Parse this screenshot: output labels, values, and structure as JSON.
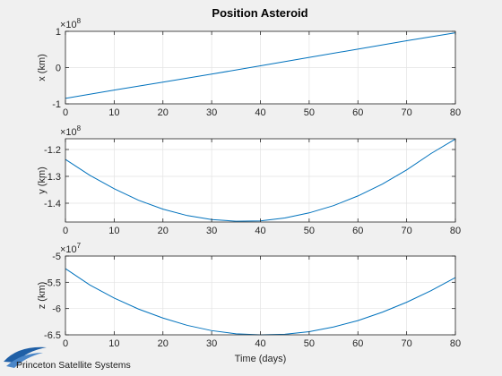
{
  "chart_data": [
    {
      "type": "line",
      "title": "Position Asteroid",
      "ylabel": "x (km)",
      "xlabel": "",
      "exponent_base": "10",
      "exponent_power": "8",
      "multiplier": 100000000,
      "xlim": [
        0,
        80
      ],
      "ylim": [
        -1,
        1
      ],
      "xticks": [
        0,
        10,
        20,
        30,
        40,
        50,
        60,
        70,
        80
      ],
      "yticks": [
        -1,
        0,
        1
      ],
      "grid": true,
      "color": "#0072bd",
      "x": [
        0,
        10,
        20,
        30,
        40,
        50,
        60,
        70,
        80
      ],
      "y": [
        -0.85,
        -0.62,
        -0.4,
        -0.18,
        0.05,
        0.28,
        0.51,
        0.74,
        0.96
      ]
    },
    {
      "type": "line",
      "title": "",
      "ylabel": "y (km)",
      "xlabel": "",
      "exponent_base": "10",
      "exponent_power": "8",
      "multiplier": 100000000,
      "xlim": [
        0,
        80
      ],
      "ylim": [
        -1.47,
        -1.16
      ],
      "xticks": [
        0,
        10,
        20,
        30,
        40,
        50,
        60,
        70,
        80
      ],
      "yticks": [
        -1.4,
        -1.3,
        -1.2
      ],
      "grid": true,
      "color": "#0072bd",
      "x": [
        0,
        5,
        10,
        15,
        20,
        25,
        30,
        35,
        40,
        45,
        50,
        55,
        60,
        65,
        70,
        75,
        80
      ],
      "y": [
        -1.237,
        -1.296,
        -1.346,
        -1.389,
        -1.422,
        -1.446,
        -1.461,
        -1.467,
        -1.466,
        -1.455,
        -1.436,
        -1.409,
        -1.373,
        -1.329,
        -1.276,
        -1.215,
        -1.161
      ]
    },
    {
      "type": "line",
      "title": "",
      "ylabel": "z (km)",
      "xlabel": "Time (days)",
      "exponent_base": "10",
      "exponent_power": "7",
      "multiplier": 10000000,
      "xlim": [
        0,
        80
      ],
      "ylim": [
        -6.5,
        -5
      ],
      "xticks": [
        0,
        10,
        20,
        30,
        40,
        50,
        60,
        70,
        80
      ],
      "yticks": [
        -6.5,
        -6,
        -5.5,
        -5
      ],
      "grid": true,
      "color": "#0072bd",
      "x": [
        0,
        5,
        10,
        15,
        20,
        25,
        30,
        35,
        40,
        45,
        50,
        55,
        60,
        65,
        70,
        75,
        80
      ],
      "y": [
        -5.24,
        -5.55,
        -5.8,
        -6.01,
        -6.18,
        -6.32,
        -6.42,
        -6.48,
        -6.5,
        -6.49,
        -6.44,
        -6.35,
        -6.23,
        -6.07,
        -5.88,
        -5.66,
        -5.41
      ]
    }
  ],
  "branding": {
    "logo_text": "Princeton Satellite Systems",
    "logo_name": "princeton-satellite-systems-logo"
  }
}
